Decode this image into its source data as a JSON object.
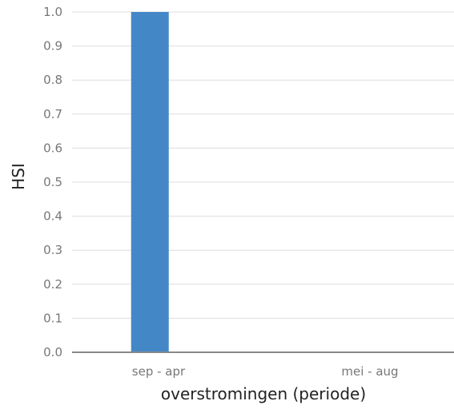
{
  "chart_data": {
    "type": "bar",
    "title": "",
    "xlabel": "overstromingen (periode)",
    "ylabel": "HSI",
    "categories": [
      "sep - apr",
      "mei - aug"
    ],
    "values": [
      1.0,
      0.0
    ],
    "ylim": [
      0,
      1
    ],
    "yticks": [
      "0.0",
      "0.1",
      "0.2",
      "0.3",
      "0.4",
      "0.5",
      "0.6",
      "0.7",
      "0.8",
      "0.9",
      "1.0"
    ],
    "grid": true,
    "legend": "none",
    "bar_color": "#4487c7"
  }
}
